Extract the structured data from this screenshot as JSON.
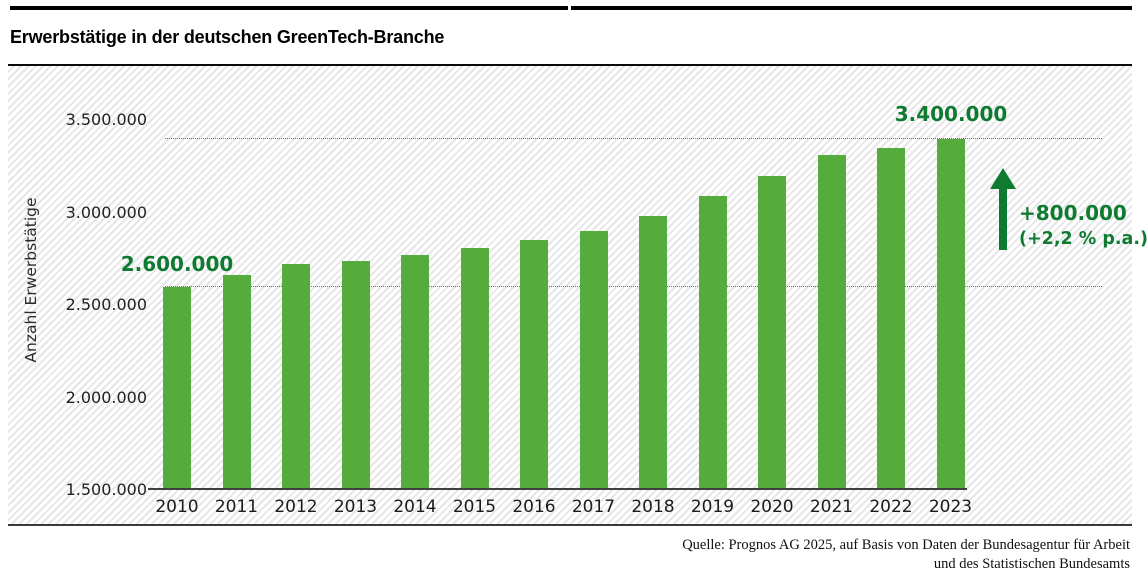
{
  "header": {
    "title": "Erwerbstätige in der deutschen GreenTech-Branche"
  },
  "chart_data": {
    "type": "bar",
    "title": "Erwerbstätige in der deutschen GreenTech-Branche",
    "xlabel": "",
    "ylabel": "Anzahl Erwerbstätige",
    "categories": [
      "2010",
      "2011",
      "2012",
      "2013",
      "2014",
      "2015",
      "2016",
      "2017",
      "2018",
      "2019",
      "2020",
      "2021",
      "2022",
      "2023"
    ],
    "values": [
      2600000,
      2660000,
      2720000,
      2740000,
      2770000,
      2810000,
      2850000,
      2900000,
      2980000,
      3090000,
      3200000,
      3310000,
      3350000,
      3400000
    ],
    "ylim": [
      1500000,
      3500000
    ],
    "y_ticks": [
      1500000,
      2000000,
      2500000,
      3000000,
      3500000
    ],
    "y_tick_labels": [
      "1.500.000",
      "2.000.000",
      "2.500.000",
      "3.000.000",
      "3.500.000"
    ],
    "grid": "no tick gridlines; two horizontal dotted reference lines at first and last bar values",
    "reference_lines": [
      2600000,
      3400000
    ],
    "legend_position": "none",
    "bar_color": "#55ab3c",
    "accent_color": "#0e7b30",
    "annotations": {
      "first_bar_label": "2.600.000",
      "last_bar_label": "3.400.000",
      "growth_label": "+800.000",
      "growth_rate_label": "(+2,2 % p.a.)"
    }
  },
  "footer": {
    "source_line1": "Quelle: Prognos AG 2025, auf Basis von Daten der Bundesagentur für Arbeit",
    "source_line2": "und des Statistischen Bundesamts"
  }
}
